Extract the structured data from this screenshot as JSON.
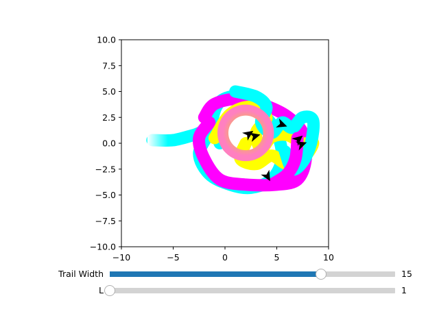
{
  "axes": {
    "xlim": [
      -10,
      10
    ],
    "ylim": [
      -10,
      10
    ],
    "x_ticks": [
      {
        "value": -10,
        "label": "−10"
      },
      {
        "value": -5,
        "label": "−5"
      },
      {
        "value": 0,
        "label": "0"
      },
      {
        "value": 5,
        "label": "5"
      },
      {
        "value": 10,
        "label": "10"
      }
    ],
    "y_ticks": [
      {
        "value": 10,
        "label": "10.0"
      },
      {
        "value": 7.5,
        "label": "7.5"
      },
      {
        "value": 5,
        "label": "5.0"
      },
      {
        "value": 2.5,
        "label": "2.5"
      },
      {
        "value": 0,
        "label": "0.0"
      },
      {
        "value": -2.5,
        "label": "−2.5"
      },
      {
        "value": -5,
        "label": "−5.0"
      },
      {
        "value": -7.5,
        "label": "−7.5"
      },
      {
        "value": -10,
        "label": "−10.0"
      }
    ]
  },
  "trails": [
    {
      "color": "#00ffff",
      "points": [
        [
          -7,
          0.3
        ],
        [
          -5,
          0.3
        ],
        [
          -3,
          0.8
        ],
        [
          -1.5,
          1.2
        ],
        [
          -2.5,
          -1
        ],
        [
          -1.5,
          -3
        ],
        [
          0.5,
          -4
        ],
        [
          2.5,
          -4.3
        ],
        [
          4.5,
          -3.5
        ],
        [
          5.5,
          -1.5
        ],
        [
          5,
          1
        ],
        [
          3.5,
          3
        ],
        [
          1.5,
          4.5
        ],
        [
          -0.5,
          4
        ],
        [
          -1.2,
          2
        ],
        [
          -0.5,
          0
        ]
      ]
    },
    {
      "color": "#ff00ff",
      "points": [
        [
          -2,
          2.5
        ],
        [
          -1,
          3.8
        ],
        [
          1.5,
          4.3
        ],
        [
          4,
          3.6
        ],
        [
          6,
          2.6
        ],
        [
          7.5,
          1
        ],
        [
          7.8,
          -1.5
        ],
        [
          7,
          -3.5
        ],
        [
          5,
          -4
        ],
        [
          2,
          -4
        ],
        [
          -0.5,
          -3.5
        ],
        [
          -2,
          -1.5
        ],
        [
          -2.5,
          0.5
        ],
        [
          -1.5,
          2
        ]
      ]
    },
    {
      "color": "#ffff00",
      "points": [
        [
          -1,
          0.5
        ],
        [
          0.5,
          2.8
        ],
        [
          2.5,
          3.5
        ],
        [
          4,
          2.5
        ],
        [
          3,
          1
        ],
        [
          3.5,
          -0.5
        ],
        [
          4.5,
          0.6
        ],
        [
          6,
          0.8
        ],
        [
          7.5,
          0
        ],
        [
          8.5,
          0
        ],
        [
          7.5,
          -1.5
        ],
        [
          6,
          -2
        ],
        [
          4.5,
          -1.2
        ],
        [
          3,
          -2
        ],
        [
          1.5,
          -1.5
        ],
        [
          2,
          0
        ]
      ]
    },
    {
      "color": "#00ffff",
      "points": [
        [
          1,
          5
        ],
        [
          3,
          4.5
        ],
        [
          4,
          3.5
        ],
        [
          3.5,
          2
        ],
        [
          4.5,
          1
        ],
        [
          5.5,
          2
        ],
        [
          6.5,
          1.5
        ],
        [
          7.5,
          2.5
        ],
        [
          8.5,
          2.2
        ],
        [
          8.3,
          0
        ],
        [
          7.5,
          -1.8
        ],
        [
          6.5,
          -2.5
        ],
        [
          5.8,
          -0.8
        ]
      ]
    },
    {
      "color": "#ff00ff",
      "points": [
        [
          4.5,
          -4
        ],
        [
          6,
          -3
        ],
        [
          6.8,
          -1.5
        ],
        [
          7,
          0.5
        ]
      ]
    }
  ],
  "gradient_blob": {
    "cx": 2,
    "cy": 1,
    "r": 2.2,
    "colors": [
      "#f5b060",
      "#e0c020",
      "#ff80c0"
    ]
  },
  "arrows": [
    {
      "x": 2.3,
      "y": 0.9,
      "angle": -35
    },
    {
      "x": 2.9,
      "y": 0.7,
      "angle": -15
    },
    {
      "x": 5.5,
      "y": 1.8,
      "angle": 20
    },
    {
      "x": 7.1,
      "y": 0.4,
      "angle": -40
    },
    {
      "x": 7.4,
      "y": -0.1,
      "angle": -20
    },
    {
      "x": 4.1,
      "y": -3.2,
      "angle": 60
    }
  ],
  "sliders": [
    {
      "label": "Trail Width",
      "value_text": "15",
      "fraction": 0.74
    },
    {
      "label": "L",
      "value_text": "1",
      "fraction": 0.0
    }
  ]
}
